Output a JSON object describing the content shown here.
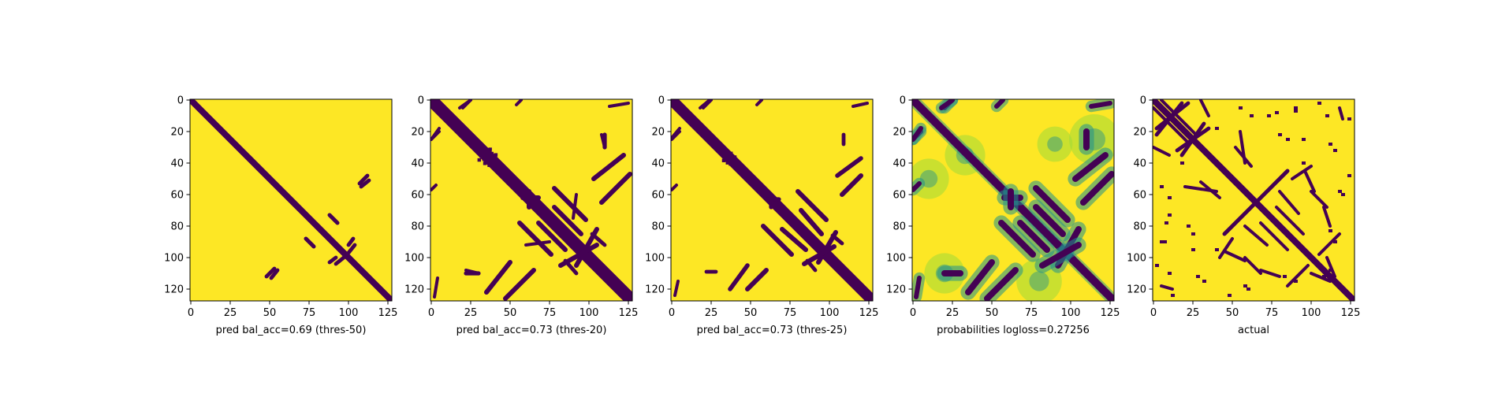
{
  "colors": {
    "background": "#ffffff",
    "positive": "#fde725",
    "contact": "#440154",
    "mid": "#21918c",
    "light": "#a0da39"
  },
  "chart_data": [
    {
      "type": "heatmap",
      "matrix_size": 128,
      "xlabel": "pred bal_acc=0.69 (thres-50)",
      "xticks": [
        0,
        25,
        50,
        75,
        100,
        125
      ],
      "yticks": [
        0,
        20,
        40,
        60,
        80,
        100,
        120
      ],
      "xlim": [
        0,
        127
      ],
      "ylim": [
        127,
        0
      ],
      "kind": "binary",
      "diagonal_width": 2,
      "features": [
        {
          "i1": 48,
          "j1": 112,
          "i2": 53,
          "j2": 107,
          "w": 1.2
        },
        {
          "i1": 73,
          "j1": 88,
          "i2": 78,
          "j2": 93,
          "w": 1.2
        },
        {
          "i1": 88,
          "j1": 73,
          "i2": 93,
          "j2": 78,
          "w": 1.2
        },
        {
          "i1": 92,
          "j1": 104,
          "i2": 97,
          "j2": 100,
          "w": 1.2
        },
        {
          "i1": 100,
          "j1": 92,
          "i2": 103,
          "j2": 88,
          "w": 1.2
        },
        {
          "i1": 108,
          "j1": 55,
          "i2": 113,
          "j2": 51,
          "w": 1.2
        }
      ]
    },
    {
      "type": "heatmap",
      "matrix_size": 128,
      "xlabel": "pred bal_acc=0.73 (thres-20)",
      "xticks": [
        0,
        25,
        50,
        75,
        100,
        125
      ],
      "yticks": [
        0,
        20,
        40,
        60,
        80,
        100,
        120
      ],
      "xlim": [
        0,
        127
      ],
      "ylim": [
        127,
        0
      ],
      "kind": "binary",
      "diagonal_width": 4,
      "features": [
        {
          "i1": 0,
          "j1": 25,
          "i2": 5,
          "j2": 20,
          "w": 1
        },
        {
          "i1": 0,
          "j1": 57,
          "i2": 3,
          "j2": 54,
          "w": 1
        },
        {
          "i1": 18,
          "j1": 5,
          "i2": 25,
          "j2": 0,
          "w": 1
        },
        {
          "i1": 22,
          "j1": 110,
          "i2": 30,
          "j2": 110,
          "w": 1.3
        },
        {
          "i1": 47,
          "j1": 126,
          "i2": 65,
          "j2": 108,
          "w": 1.5
        },
        {
          "i1": 62,
          "j1": 68,
          "i2": 62,
          "j2": 58,
          "w": 1.5
        },
        {
          "i1": 68,
          "j1": 78,
          "i2": 85,
          "j2": 95,
          "w": 1.5
        },
        {
          "i1": 78,
          "j1": 56,
          "i2": 98,
          "j2": 76,
          "w": 1.5
        },
        {
          "i1": 82,
          "j1": 105,
          "i2": 105,
          "j2": 92,
          "w": 1.5
        },
        {
          "i1": 90,
          "j1": 75,
          "i2": 92,
          "j2": 60,
          "w": 1
        },
        {
          "i1": 102,
          "j1": 85,
          "i2": 110,
          "j2": 92,
          "w": 1.2
        },
        {
          "i1": 103,
          "j1": 50,
          "i2": 122,
          "j2": 35,
          "w": 1.5
        },
        {
          "i1": 108,
          "j1": 22,
          "i2": 110,
          "j2": 30,
          "w": 1
        },
        {
          "i1": 113,
          "j1": 4,
          "i2": 125,
          "j2": 2,
          "w": 1
        }
      ],
      "blobs": [
        {
          "cx": 35,
          "cy": 36,
          "r": 6
        }
      ]
    },
    {
      "type": "heatmap",
      "matrix_size": 128,
      "xlabel": "pred bal_acc=0.73 (thres-25)",
      "xticks": [
        0,
        25,
        50,
        75,
        100,
        125
      ],
      "yticks": [
        0,
        20,
        40,
        60,
        80,
        100,
        120
      ],
      "xlim": [
        0,
        127
      ],
      "ylim": [
        127,
        0
      ],
      "kind": "binary",
      "diagonal_width": 3.5,
      "features": [
        {
          "i1": 0,
          "j1": 25,
          "i2": 5,
          "j2": 20,
          "w": 1
        },
        {
          "i1": 0,
          "j1": 57,
          "i2": 3,
          "j2": 54,
          "w": 1
        },
        {
          "i1": 18,
          "j1": 5,
          "i2": 24,
          "j2": 0,
          "w": 1
        },
        {
          "i1": 22,
          "j1": 109,
          "i2": 28,
          "j2": 109,
          "w": 1.2
        },
        {
          "i1": 48,
          "j1": 120,
          "i2": 60,
          "j2": 108,
          "w": 1.5
        },
        {
          "i1": 63,
          "j1": 68,
          "i2": 63,
          "j2": 60,
          "w": 1.3
        },
        {
          "i1": 70,
          "j1": 82,
          "i2": 85,
          "j2": 95,
          "w": 1.5
        },
        {
          "i1": 80,
          "j1": 58,
          "i2": 98,
          "j2": 76,
          "w": 1.5
        },
        {
          "i1": 84,
          "j1": 104,
          "i2": 103,
          "j2": 93,
          "w": 1.5
        },
        {
          "i1": 102,
          "j1": 86,
          "i2": 108,
          "j2": 91,
          "w": 1.2
        },
        {
          "i1": 105,
          "j1": 48,
          "i2": 120,
          "j2": 37,
          "w": 1.4
        },
        {
          "i1": 115,
          "j1": 4,
          "i2": 124,
          "j2": 2,
          "w": 1
        }
      ],
      "blobs": [
        {
          "cx": 36,
          "cy": 37,
          "r": 4
        }
      ]
    },
    {
      "type": "heatmap",
      "matrix_size": 128,
      "xlabel": "probabilities logloss=0.27256",
      "xticks": [
        0,
        25,
        50,
        75,
        100,
        125
      ],
      "yticks": [
        0,
        20,
        40,
        60,
        80,
        100,
        120
      ],
      "xlim": [
        0,
        127
      ],
      "ylim": [
        127,
        0
      ],
      "kind": "probability",
      "diagonal_width": 2.5,
      "features": [
        {
          "i1": 0,
          "j1": 25,
          "i2": 5,
          "j2": 20,
          "w": 1.5
        },
        {
          "i1": 0,
          "j1": 57,
          "i2": 4,
          "j2": 53,
          "w": 1.5
        },
        {
          "i1": 18,
          "j1": 5,
          "i2": 25,
          "j2": 0,
          "w": 1.5
        },
        {
          "i1": 20,
          "j1": 110,
          "i2": 30,
          "j2": 110,
          "w": 2
        },
        {
          "i1": 47,
          "j1": 126,
          "i2": 65,
          "j2": 108,
          "w": 2
        },
        {
          "i1": 62,
          "j1": 68,
          "i2": 62,
          "j2": 58,
          "w": 2
        },
        {
          "i1": 68,
          "j1": 78,
          "i2": 85,
          "j2": 95,
          "w": 2
        },
        {
          "i1": 78,
          "j1": 56,
          "i2": 98,
          "j2": 76,
          "w": 2
        },
        {
          "i1": 82,
          "j1": 105,
          "i2": 105,
          "j2": 92,
          "w": 2
        },
        {
          "i1": 103,
          "j1": 50,
          "i2": 122,
          "j2": 35,
          "w": 2
        },
        {
          "i1": 113,
          "j1": 4,
          "i2": 125,
          "j2": 2,
          "w": 1.5
        }
      ],
      "blobs": [
        {
          "cx": 33,
          "cy": 35,
          "r": 8
        },
        {
          "cx": 10,
          "cy": 50,
          "r": 8
        },
        {
          "cx": 90,
          "cy": 28,
          "r": 7
        },
        {
          "cx": 115,
          "cy": 25,
          "r": 10
        },
        {
          "cx": 80,
          "cy": 115,
          "r": 9
        },
        {
          "cx": 20,
          "cy": 110,
          "r": 8
        }
      ]
    },
    {
      "type": "heatmap",
      "matrix_size": 128,
      "xlabel": "actual",
      "xticks": [
        0,
        25,
        50,
        75,
        100,
        125
      ],
      "yticks": [
        0,
        20,
        40,
        60,
        80,
        100,
        120
      ],
      "xlim": [
        0,
        127
      ],
      "ylim": [
        127,
        0
      ],
      "kind": "binary",
      "diagonal_width": 2,
      "features": [
        {
          "i1": 0,
          "j1": 5,
          "i2": 22,
          "j2": 27,
          "w": 1
        },
        {
          "i1": 2,
          "j1": 22,
          "i2": 18,
          "j2": 2,
          "w": 1.2
        },
        {
          "i1": 15,
          "j1": 32,
          "i2": 35,
          "j2": 18,
          "w": 1.2
        },
        {
          "i1": 30,
          "j1": 0,
          "i2": 35,
          "j2": 10,
          "w": 1
        },
        {
          "i1": 42,
          "j1": 100,
          "i2": 50,
          "j2": 88,
          "w": 1
        },
        {
          "i1": 45,
          "j1": 85,
          "i2": 85,
          "j2": 45,
          "w": 1.2
        },
        {
          "i1": 52,
          "j1": 30,
          "i2": 62,
          "j2": 42,
          "w": 1
        },
        {
          "i1": 55,
          "j1": 20,
          "i2": 58,
          "j2": 40,
          "w": 1
        },
        {
          "i1": 58,
          "j1": 100,
          "i2": 68,
          "j2": 110,
          "w": 1
        },
        {
          "i1": 68,
          "j1": 78,
          "i2": 85,
          "j2": 95,
          "w": 1
        },
        {
          "i1": 80,
          "j1": 58,
          "i2": 92,
          "j2": 72,
          "w": 1
        },
        {
          "i1": 85,
          "j1": 118,
          "i2": 98,
          "j2": 105,
          "w": 1
        },
        {
          "i1": 96,
          "j1": 45,
          "i2": 102,
          "j2": 58,
          "w": 1
        },
        {
          "i1": 108,
          "j1": 68,
          "i2": 112,
          "j2": 80,
          "w": 1
        },
        {
          "i1": 110,
          "j1": 100,
          "i2": 115,
          "j2": 112,
          "w": 1
        },
        {
          "i1": 118,
          "j1": 5,
          "i2": 120,
          "j2": 12,
          "w": 1
        }
      ],
      "dots": [
        {
          "i": 5,
          "j": 55
        },
        {
          "i": 10,
          "j": 62
        },
        {
          "i": 8,
          "j": 78
        },
        {
          "i": 7,
          "j": 90
        },
        {
          "i": 10,
          "j": 110
        },
        {
          "i": 12,
          "j": 124
        },
        {
          "i": 18,
          "j": 40
        },
        {
          "i": 25,
          "j": 85
        },
        {
          "i": 25,
          "j": 95
        },
        {
          "i": 32,
          "j": 115
        },
        {
          "i": 48,
          "j": 124
        },
        {
          "i": 58,
          "j": 118
        },
        {
          "i": 73,
          "j": 10
        },
        {
          "i": 80,
          "j": 22
        },
        {
          "i": 83,
          "j": 112
        },
        {
          "i": 90,
          "j": 5
        },
        {
          "i": 95,
          "j": 40
        },
        {
          "i": 105,
          "j": 2
        },
        {
          "i": 108,
          "j": 112
        },
        {
          "i": 115,
          "j": 90
        },
        {
          "i": 112,
          "j": 28
        },
        {
          "i": 120,
          "j": 60
        }
      ]
    }
  ]
}
